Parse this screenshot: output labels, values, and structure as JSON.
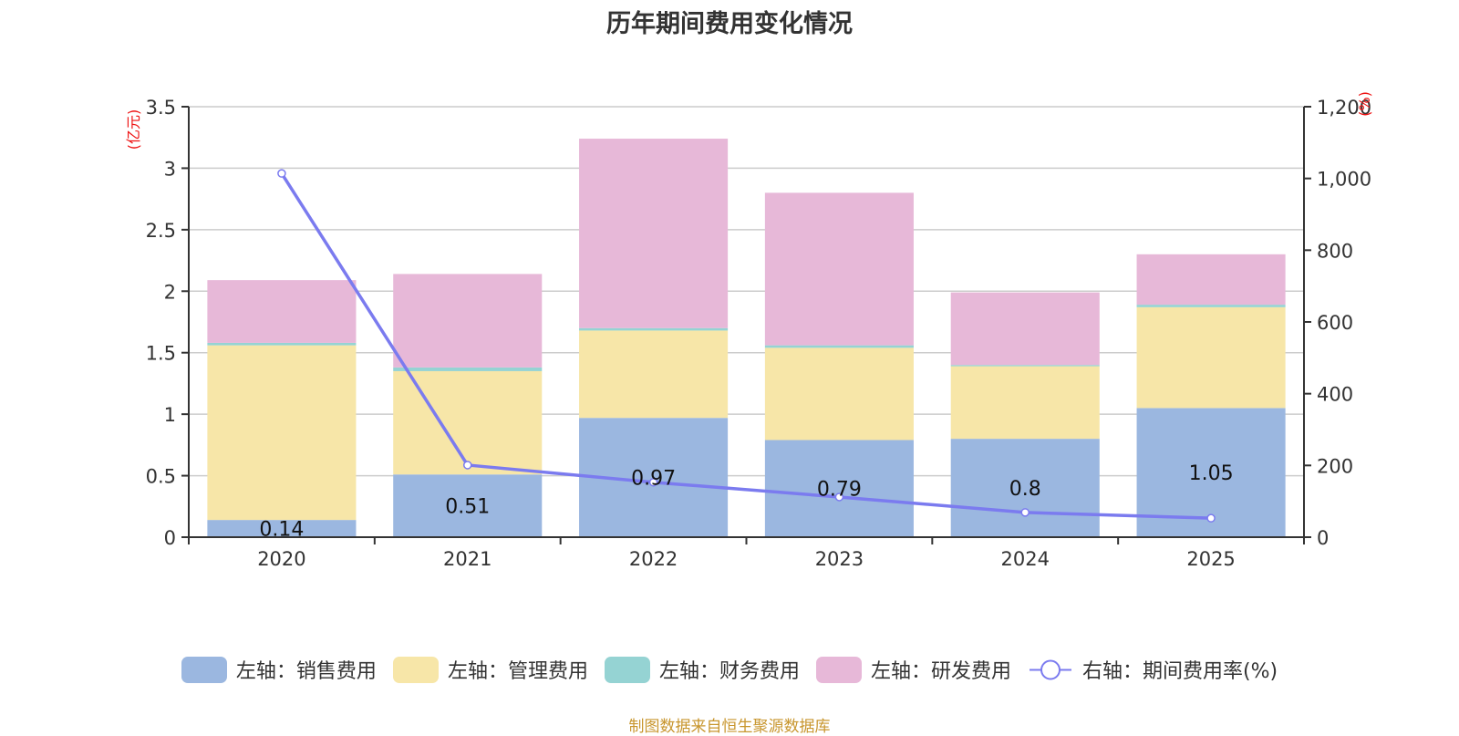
{
  "chart_data": {
    "type": "bar",
    "stacked": true,
    "title": "历年期间费用变化情况",
    "categories": [
      "2020",
      "2021",
      "2022",
      "2023",
      "2024",
      "2025"
    ],
    "left_axis": {
      "unit_label": "(亿元)",
      "range": [
        0,
        3.5
      ],
      "ticks": [
        "0",
        "0.5",
        "1",
        "1.5",
        "2",
        "2.5",
        "3",
        "3.5"
      ],
      "tick_values": [
        0,
        0.5,
        1,
        1.5,
        2,
        2.5,
        3,
        3.5
      ]
    },
    "right_axis": {
      "unit_label": "(%)",
      "range": [
        0,
        1200
      ],
      "ticks": [
        "0",
        "200",
        "400",
        "600",
        "800",
        "1,000",
        "1,200"
      ],
      "tick_values": [
        0,
        200,
        400,
        600,
        800,
        1000,
        1200
      ]
    },
    "grid": true,
    "legend_position": "bottom",
    "series": [
      {
        "name": "左轴：销售费用",
        "axis": "left",
        "kind": "bar",
        "color": "#9bb7e0",
        "values": [
          0.14,
          0.51,
          0.97,
          0.79,
          0.8,
          1.05
        ],
        "data_labels": [
          "0.14",
          "0.51",
          "0.97",
          "0.79",
          "0.8",
          "1.05"
        ]
      },
      {
        "name": "左轴：管理费用",
        "axis": "left",
        "kind": "bar",
        "color": "#f7e6a8",
        "values": [
          1.42,
          0.84,
          0.71,
          0.75,
          0.59,
          0.82
        ]
      },
      {
        "name": "左轴：财务费用",
        "axis": "left",
        "kind": "bar",
        "color": "#95d3d3",
        "values": [
          0.02,
          0.03,
          0.02,
          0.02,
          0.01,
          0.02
        ]
      },
      {
        "name": "左轴：研发费用",
        "axis": "left",
        "kind": "bar",
        "color": "#e7b8d8",
        "values": [
          0.51,
          0.76,
          1.54,
          1.24,
          0.59,
          0.41
        ]
      },
      {
        "name": "右轴：期间费用率(%)",
        "axis": "right",
        "kind": "line",
        "color": "#7b7bef",
        "values": [
          1014,
          201,
          153,
          112,
          69,
          53
        ]
      }
    ]
  },
  "source_note": "制图数据来自恒生聚源数据库"
}
